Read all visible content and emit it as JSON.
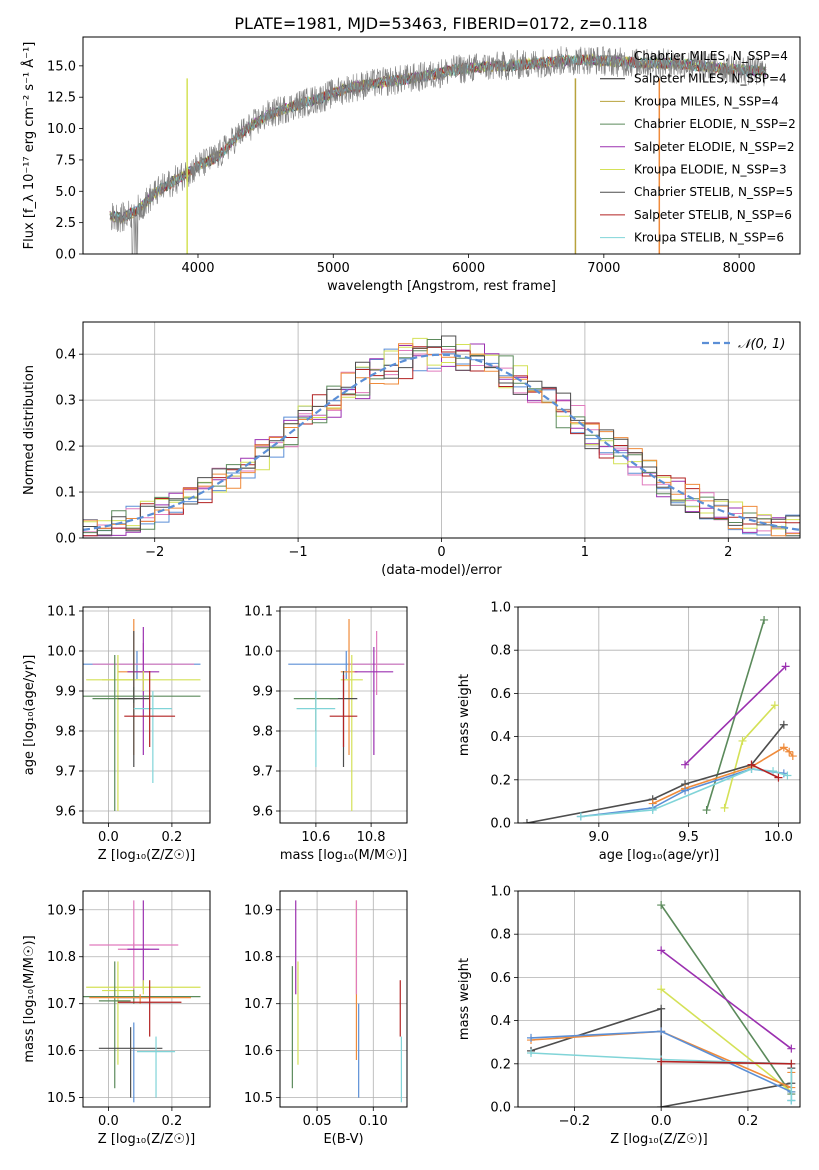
{
  "figure": {
    "title": "PLATE=1981, MJD=53463, FIBERID=0172, z=0.118"
  },
  "chart_data": [
    {
      "id": "spectrum",
      "type": "line",
      "xlabel": "wavelength [Angstrom, rest frame]",
      "ylabel": "Flux [f_λ 10⁻¹⁷ erg cm⁻² s⁻¹ Å⁻¹]",
      "xlim": [
        3150,
        8450
      ],
      "ylim": [
        0,
        17.3
      ],
      "xticks": [
        4000,
        5000,
        6000,
        7000,
        8000
      ],
      "yticks": [
        0.0,
        2.5,
        5.0,
        7.5,
        10.0,
        12.5,
        15.0
      ],
      "grid": false,
      "legend_position": "top-right",
      "data_envelope": {
        "x": [
          3350,
          3450,
          3550,
          3700,
          3850,
          4000,
          4150,
          4300,
          4500,
          4700,
          4900,
          5100,
          5300,
          5500,
          5700,
          5900,
          6100,
          6300,
          6500,
          6700,
          6900,
          7100,
          7300,
          7500,
          7700,
          7900,
          8100,
          8200
        ],
        "y": [
          3.0,
          2.9,
          3.5,
          5.0,
          6.0,
          7.0,
          7.8,
          9.5,
          11.0,
          11.8,
          12.4,
          13.2,
          13.6,
          13.9,
          14.2,
          14.7,
          14.9,
          15.0,
          15.2,
          15.4,
          15.5,
          15.3,
          15.2,
          15.2,
          15.0,
          14.8,
          14.6,
          14.5
        ]
      },
      "series": [
        {
          "name": "Chabrier MILES, N_SSP=4",
          "color": "#808080"
        },
        {
          "name": "Salpeter MILES, N_SSP=4",
          "color": "#222222"
        },
        {
          "name": "Kroupa MILES, N_SSP=4",
          "color": "#b8a23c"
        },
        {
          "name": "Chabrier ELODIE, N_SSP=2",
          "color": "#5b8a5b"
        },
        {
          "name": "Salpeter ELODIE, N_SSP=2",
          "color": "#9b30b0"
        },
        {
          "name": "Kroupa ELODIE, N_SSP=3",
          "color": "#d4e157"
        },
        {
          "name": "Chabrier STELIB, N_SSP=5",
          "color": "#4d4d4d"
        },
        {
          "name": "Salpeter STELIB, N_SSP=6",
          "color": "#b22222"
        },
        {
          "name": "Kroupa STELIB, N_SSP=6",
          "color": "#80d4d8"
        }
      ]
    },
    {
      "id": "residuals",
      "type": "line",
      "xlabel": "(data-model)/error",
      "ylabel": "Normed distribution",
      "xlim": [
        -2.5,
        2.5
      ],
      "ylim": [
        0,
        0.47
      ],
      "xticks": [
        -2,
        -1,
        0,
        1,
        2
      ],
      "yticks": [
        0.0,
        0.1,
        0.2,
        0.3,
        0.4
      ],
      "grid": true,
      "legend_position": "top-right",
      "reference": {
        "name": "𝒩(0, 1)",
        "color": "#5b8fd6",
        "mu": 0,
        "sigma": 1
      },
      "histogram_colors": [
        "#5b8fd6",
        "#e07bbd",
        "#9b30b0",
        "#d4e157",
        "#b22222",
        "#5b8a5b",
        "#ef8b3b",
        "#4d4d4d"
      ]
    },
    {
      "id": "age-vs-Z",
      "type": "scatter",
      "xlabel": "Z [log₁₀(Z/Z☉)]",
      "ylabel": "age  [log₁₀(age/yr)]",
      "xlim": [
        -0.08,
        0.32
      ],
      "ylim": [
        9.57,
        10.11
      ],
      "xticks": [
        0.0,
        0.2
      ],
      "yticks": [
        9.6,
        9.7,
        9.8,
        9.9,
        10.0,
        10.1
      ],
      "grid": true,
      "points": [
        {
          "x": 0.09,
          "y": 9.967,
          "xerr": 0.2,
          "ylo": 9.93,
          "yhi": 10.0,
          "color": "#5b8fd6"
        },
        {
          "x": 0.11,
          "y": 9.967,
          "xerr": 0.16,
          "ylo": 9.9,
          "yhi": 10.02,
          "color": "#e07bbd"
        },
        {
          "x": 0.08,
          "y": 9.948,
          "xerr": 0.05,
          "ylo": 9.74,
          "yhi": 10.08,
          "color": "#ef8b3b"
        },
        {
          "x": 0.11,
          "y": 9.948,
          "xerr": 0.05,
          "ylo": 9.74,
          "yhi": 10.06,
          "color": "#9b30b0"
        },
        {
          "x": 0.03,
          "y": 9.928,
          "xerr": 0.05,
          "ylo": 9.6,
          "yhi": 9.99,
          "color": "#d4e157"
        },
        {
          "x": 0.11,
          "y": 9.928,
          "xerr": 0.18,
          "ylo": 9.9,
          "yhi": 9.95,
          "color": "#d4e157"
        },
        {
          "x": 0.08,
          "y": 9.887,
          "xerr": 0.21,
          "ylo": 9.87,
          "yhi": 9.91,
          "color": "#5b8a5b"
        },
        {
          "x": 0.02,
          "y": 9.881,
          "xerr": 0.07,
          "ylo": 9.6,
          "yhi": 9.99,
          "color": "#5b8a5b"
        },
        {
          "x": 0.08,
          "y": 9.881,
          "xerr": 0.05,
          "ylo": 9.71,
          "yhi": 10.05,
          "color": "#4d4d4d"
        },
        {
          "x": 0.14,
          "y": 9.856,
          "xerr": 0.06,
          "ylo": 9.67,
          "yhi": 9.9,
          "color": "#80d4d8"
        },
        {
          "x": 0.13,
          "y": 9.837,
          "xerr": 0.08,
          "ylo": 9.76,
          "yhi": 9.95,
          "color": "#b22222"
        }
      ]
    },
    {
      "id": "age-vs-mass",
      "type": "scatter",
      "xlabel": "mass [log₁₀(M/M☉)]",
      "ylabel": "",
      "xlim": [
        10.47,
        10.93
      ],
      "ylim": [
        9.57,
        10.11
      ],
      "xticks": [
        10.6,
        10.8
      ],
      "yticks": [
        9.6,
        9.7,
        9.8,
        9.9,
        10.0,
        10.1
      ],
      "grid": true,
      "points": [
        {
          "x": 10.71,
          "y": 9.967,
          "xerr": 0.21,
          "ylo": 9.93,
          "yhi": 10.0,
          "color": "#5b8fd6"
        },
        {
          "x": 10.82,
          "y": 9.967,
          "xerr": 0.1,
          "ylo": 9.89,
          "yhi": 10.05,
          "color": "#e07bbd"
        },
        {
          "x": 10.72,
          "y": 9.948,
          "xerr": 0.03,
          "ylo": 9.74,
          "yhi": 10.08,
          "color": "#ef8b3b"
        },
        {
          "x": 10.81,
          "y": 9.948,
          "xerr": 0.07,
          "ylo": 9.74,
          "yhi": 10.01,
          "color": "#9b30b0"
        },
        {
          "x": 10.73,
          "y": 9.928,
          "xerr": 0.04,
          "ylo": 9.6,
          "yhi": 9.99,
          "color": "#d4e157"
        },
        {
          "x": 10.7,
          "y": 9.881,
          "xerr": 0.05,
          "ylo": 9.71,
          "yhi": 9.95,
          "color": "#4d4d4d"
        },
        {
          "x": 10.6,
          "y": 9.881,
          "xerr": 0.08,
          "ylo": 9.8,
          "yhi": 9.9,
          "color": "#5b8a5b"
        },
        {
          "x": 10.6,
          "y": 9.856,
          "xerr": 0.07,
          "ylo": 9.71,
          "yhi": 9.9,
          "color": "#80d4d8"
        },
        {
          "x": 10.7,
          "y": 9.837,
          "xerr": 0.05,
          "ylo": 9.76,
          "yhi": 9.94,
          "color": "#b22222"
        }
      ]
    },
    {
      "id": "weight-vs-age",
      "type": "line",
      "xlabel": "age  [log₁₀(age/yr)]",
      "ylabel": "mass weight",
      "xlim": [
        8.55,
        10.12
      ],
      "ylim": [
        0.0,
        1.0
      ],
      "xticks": [
        9.0,
        9.5,
        10.0
      ],
      "yticks": [
        0.0,
        0.2,
        0.4,
        0.6,
        0.8,
        1.0
      ],
      "grid": true,
      "series": [
        {
          "color": "#5b8a5b",
          "x": [
            9.6,
            9.92
          ],
          "y": [
            0.06,
            0.94
          ]
        },
        {
          "color": "#9b30b0",
          "x": [
            9.48,
            10.04
          ],
          "y": [
            0.27,
            0.725
          ]
        },
        {
          "color": "#d4e157",
          "x": [
            9.7,
            9.8,
            9.98
          ],
          "y": [
            0.07,
            0.38,
            0.545
          ]
        },
        {
          "color": "#4d4d4d",
          "x": [
            8.6,
            9.3,
            9.48,
            9.85,
            10.03
          ],
          "y": [
            0.0,
            0.11,
            0.18,
            0.27,
            0.455
          ]
        },
        {
          "color": "#ef8b3b",
          "x": [
            9.3,
            9.48,
            9.85,
            10.03,
            10.06,
            10.08
          ],
          "y": [
            0.09,
            0.16,
            0.26,
            0.35,
            0.33,
            0.31
          ]
        },
        {
          "color": "#5b8fd6",
          "x": [
            8.9,
            9.3,
            9.48,
            9.85,
            10.03
          ],
          "y": [
            0.03,
            0.07,
            0.15,
            0.25,
            0.23
          ]
        },
        {
          "color": "#80d4d8",
          "x": [
            8.9,
            9.3,
            9.85,
            9.97,
            10.05
          ],
          "y": [
            0.03,
            0.06,
            0.25,
            0.24,
            0.22
          ]
        },
        {
          "color": "#b22222",
          "x": [
            9.85,
            10.0
          ],
          "y": [
            0.27,
            0.21
          ]
        }
      ]
    },
    {
      "id": "mass-vs-Z",
      "type": "scatter",
      "xlabel": "Z [log₁₀(Z/Z☉)]",
      "ylabel": "mass [log₁₀(M/M☉)]",
      "xlim": [
        -0.08,
        0.32
      ],
      "ylim": [
        10.48,
        10.94
      ],
      "xticks": [
        0.0,
        0.2
      ],
      "yticks": [
        10.5,
        10.6,
        10.7,
        10.8,
        10.9
      ],
      "grid": true,
      "points": [
        {
          "x": 0.08,
          "y": 10.825,
          "xerr": 0.14,
          "ylo": 10.82,
          "yhi": 10.83,
          "color": "#e07bbd"
        },
        {
          "x": 0.08,
          "y": 10.816,
          "xerr": 0.05,
          "ylo": 10.73,
          "yhi": 10.92,
          "color": "#e07bbd"
        },
        {
          "x": 0.11,
          "y": 10.816,
          "xerr": 0.05,
          "ylo": 10.73,
          "yhi": 10.92,
          "color": "#9b30b0"
        },
        {
          "x": 0.11,
          "y": 10.735,
          "xerr": 0.18,
          "ylo": 10.72,
          "yhi": 10.75,
          "color": "#d4e157"
        },
        {
          "x": 0.03,
          "y": 10.728,
          "xerr": 0.05,
          "ylo": 10.57,
          "yhi": 10.79,
          "color": "#d4e157"
        },
        {
          "x": 0.08,
          "y": 10.715,
          "xerr": 0.21,
          "ylo": 10.7,
          "yhi": 10.73,
          "color": "#5b8a5b"
        },
        {
          "x": 0.02,
          "y": 10.706,
          "xerr": 0.05,
          "ylo": 10.52,
          "yhi": 10.79,
          "color": "#5b8a5b"
        },
        {
          "x": 0.08,
          "y": 10.713,
          "xerr": 0.05,
          "ylo": 10.49,
          "yhi": 10.66,
          "color": "#5b8fd6"
        },
        {
          "x": 0.1,
          "y": 10.713,
          "xerr": 0.16,
          "ylo": 10.7,
          "yhi": 10.72,
          "color": "#ef8b3b"
        },
        {
          "x": 0.13,
          "y": 10.703,
          "xerr": 0.1,
          "ylo": 10.63,
          "yhi": 10.75,
          "color": "#b22222"
        },
        {
          "x": 0.07,
          "y": 10.605,
          "xerr": 0.1,
          "ylo": 10.5,
          "yhi": 10.65,
          "color": "#4d4d4d"
        },
        {
          "x": 0.15,
          "y": 10.598,
          "xerr": 0.06,
          "ylo": 10.5,
          "yhi": 10.63,
          "color": "#80d4d8"
        }
      ]
    },
    {
      "id": "mass-vs-ebv",
      "type": "scatter",
      "xlabel": "E(B-V)",
      "ylabel": "",
      "xlim": [
        0.017,
        0.13
      ],
      "ylim": [
        10.48,
        10.94
      ],
      "xticks": [
        0.05,
        0.1
      ],
      "yticks": [
        10.5,
        10.6,
        10.7,
        10.8,
        10.9
      ],
      "grid": true,
      "points": [
        {
          "x": 0.028,
          "ylo": 10.52,
          "yhi": 10.78,
          "color": "#5b8a5b"
        },
        {
          "x": 0.031,
          "ylo": 10.72,
          "yhi": 10.92,
          "color": "#9b30b0"
        },
        {
          "x": 0.033,
          "ylo": 10.57,
          "yhi": 10.79,
          "color": "#d4e157"
        },
        {
          "x": 0.085,
          "ylo": 10.58,
          "yhi": 10.92,
          "color": "#ef8b3b"
        },
        {
          "x": 0.085,
          "ylo": 10.72,
          "yhi": 10.92,
          "color": "#e07bbd"
        },
        {
          "x": 0.087,
          "ylo": 10.5,
          "yhi": 10.7,
          "color": "#5b8fd6"
        },
        {
          "x": 0.124,
          "ylo": 10.63,
          "yhi": 10.75,
          "color": "#b22222"
        },
        {
          "x": 0.125,
          "ylo": 10.49,
          "yhi": 10.63,
          "color": "#80d4d8"
        }
      ]
    },
    {
      "id": "weight-vs-Z",
      "type": "line",
      "xlabel": "Z [log₁₀(Z/Z☉)]",
      "ylabel": "mass weight",
      "xlim": [
        -0.33,
        0.32
      ],
      "ylim": [
        0.0,
        1.0
      ],
      "xticks": [
        -0.2,
        0.0,
        0.2
      ],
      "yticks": [
        0.0,
        0.2,
        0.4,
        0.6,
        0.8,
        1.0
      ],
      "grid": true,
      "series": [
        {
          "color": "#5b8a5b",
          "x": [
            0.0,
            0.3
          ],
          "y": [
            0.935,
            0.06
          ]
        },
        {
          "color": "#9b30b0",
          "x": [
            0.0,
            0.3
          ],
          "y": [
            0.725,
            0.27
          ]
        },
        {
          "color": "#d4e157",
          "x": [
            0.0,
            0.3
          ],
          "y": [
            0.545,
            0.07
          ]
        },
        {
          "color": "#4d4d4d",
          "x": [
            -0.3,
            0.0,
            0.0,
            0.3,
            0.3
          ],
          "y": [
            0.26,
            0.455,
            0.0,
            0.11,
            0.18
          ]
        },
        {
          "color": "#ef8b3b",
          "x": [
            -0.3,
            0.0,
            0.3,
            0.3
          ],
          "y": [
            0.31,
            0.35,
            0.09,
            0.16
          ]
        },
        {
          "color": "#5b8fd6",
          "x": [
            -0.3,
            0.0,
            0.3,
            0.3
          ],
          "y": [
            0.32,
            0.35,
            0.07,
            0.03
          ]
        },
        {
          "color": "#80d4d8",
          "x": [
            -0.3,
            0.0,
            0.3,
            0.3
          ],
          "y": [
            0.25,
            0.22,
            0.2,
            0.03
          ]
        },
        {
          "color": "#b22222",
          "x": [
            0.0,
            0.3
          ],
          "y": [
            0.21,
            0.2
          ]
        }
      ]
    }
  ]
}
